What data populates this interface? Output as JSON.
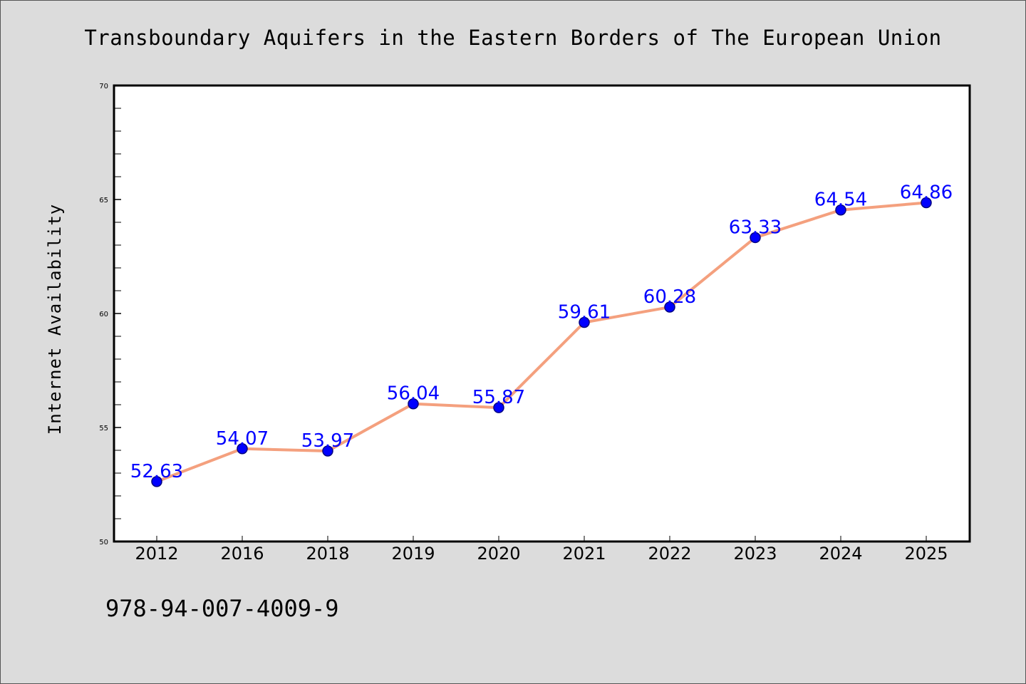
{
  "chart_data": {
    "type": "line",
    "title": "Transboundary Aquifers in the Eastern Borders of The European Union",
    "xlabel": "",
    "ylabel": "Internet Availability",
    "categories": [
      "2012",
      "2016",
      "2018",
      "2019",
      "2020",
      "2021",
      "2022",
      "2023",
      "2024",
      "2025"
    ],
    "values": [
      52.63,
      54.07,
      53.97,
      56.04,
      55.87,
      59.61,
      60.28,
      63.33,
      64.54,
      64.86
    ],
    "data_labels": [
      "52.63",
      "54.07",
      "53.97",
      "56.04",
      "55.87",
      "59.61",
      "60.28",
      "63.33",
      "64.54",
      "64.86"
    ],
    "ylim": [
      50,
      70
    ],
    "yticks": [
      "50",
      "55",
      "60",
      "65",
      "70"
    ],
    "grid": false,
    "legend": "none",
    "colors": {
      "line": "#f4a07e",
      "marker": "#0000ff",
      "marker_edge": "#000080",
      "data_label": "#0000ff",
      "background": "#dcdcdc",
      "plot_area": "#ffffff"
    }
  },
  "footer": {
    "code": "978-94-007-4009-9"
  }
}
